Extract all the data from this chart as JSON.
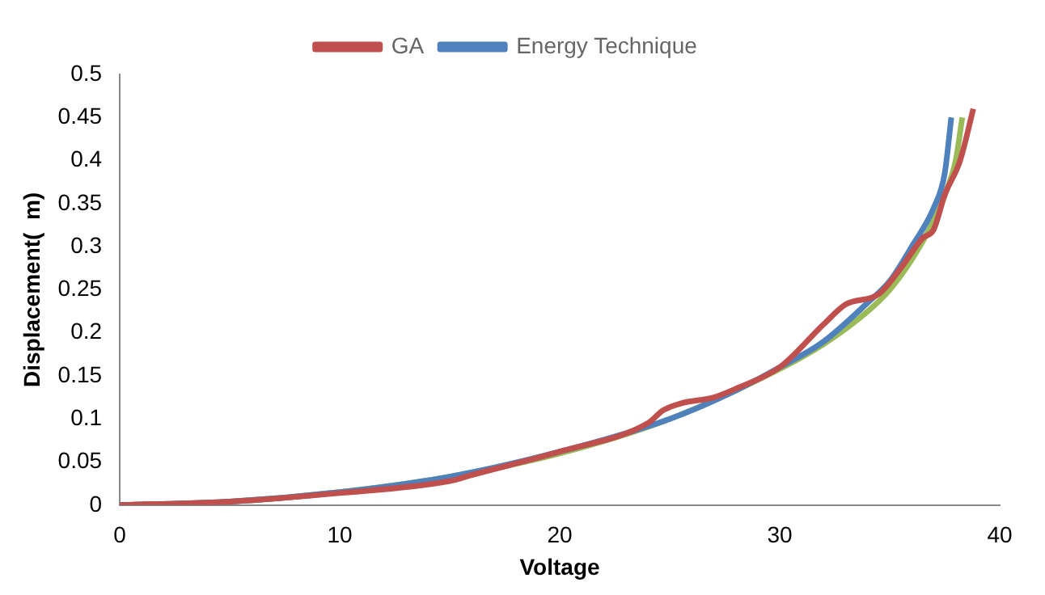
{
  "chart_data": {
    "type": "line",
    "xlabel": "Voltage",
    "ylabel": "Displacement(  m)",
    "xlim": [
      0,
      40
    ],
    "xticks": [
      0,
      10,
      20,
      30,
      40
    ],
    "ylim": [
      0,
      0.5
    ],
    "yticks": [
      0,
      0.05,
      0.1,
      0.15,
      0.2,
      0.25,
      0.3,
      0.35,
      0.4,
      0.45,
      0.5
    ],
    "grid": false,
    "legend": "top",
    "marker": "none",
    "series": [
      {
        "name": "GA",
        "color": "#c0504d",
        "x": [
          0,
          5,
          10,
          15,
          16,
          20,
          24,
          24.7,
          25.5,
          27,
          28,
          30,
          32,
          33,
          34.5,
          35.5,
          36.5,
          37,
          37.5,
          38.2,
          38.8
        ],
        "values": [
          0,
          0.004,
          0.014,
          0.028,
          0.035,
          0.062,
          0.095,
          0.11,
          0.118,
          0.125,
          0.135,
          0.16,
          0.21,
          0.233,
          0.245,
          0.275,
          0.31,
          0.32,
          0.36,
          0.4,
          0.46
        ]
      },
      {
        "name": "Energy Technique",
        "color": "#4f81bd",
        "x": [
          0,
          5,
          10,
          15,
          20,
          25,
          28,
          30,
          32,
          34,
          35,
          36,
          37,
          37.5,
          37.8
        ],
        "values": [
          0,
          0.004,
          0.015,
          0.033,
          0.062,
          0.1,
          0.133,
          0.16,
          0.19,
          0.235,
          0.26,
          0.3,
          0.345,
          0.385,
          0.45
        ]
      },
      {
        "color": "#9bbb59",
        "x": [
          0,
          5,
          10,
          15,
          20,
          25,
          30,
          32,
          34,
          35,
          36,
          37,
          37.5,
          38,
          38.3
        ],
        "values": [
          0,
          0.004,
          0.015,
          0.033,
          0.06,
          0.1,
          0.158,
          0.187,
          0.225,
          0.25,
          0.285,
          0.33,
          0.36,
          0.4,
          0.45
        ]
      }
    ]
  }
}
